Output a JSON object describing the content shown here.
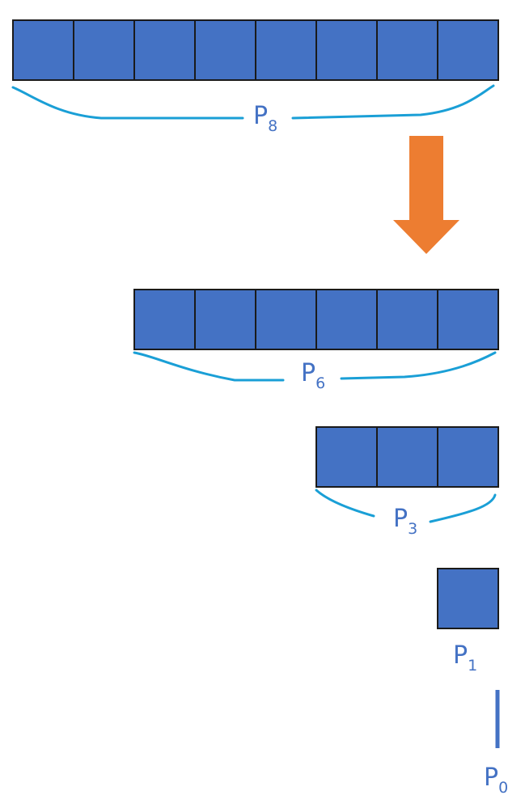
{
  "colors": {
    "cell_fill": "#4472C4",
    "cell_border": "#1a1a1a",
    "brace": "#1a9fd6",
    "label": "#4472C4",
    "arrow": "#ED7D31"
  },
  "groups": [
    {
      "id": "p8",
      "letter": "P",
      "subscript": "8",
      "cells": 8
    },
    {
      "id": "p6",
      "letter": "P",
      "subscript": "6",
      "cells": 6
    },
    {
      "id": "p3",
      "letter": "P",
      "subscript": "3",
      "cells": 3
    },
    {
      "id": "p1",
      "letter": "P",
      "subscript": "1",
      "cells": 1
    },
    {
      "id": "p0",
      "letter": "P",
      "subscript": "0",
      "cells": 0
    }
  ],
  "arrow_icon": "down-arrow-icon"
}
